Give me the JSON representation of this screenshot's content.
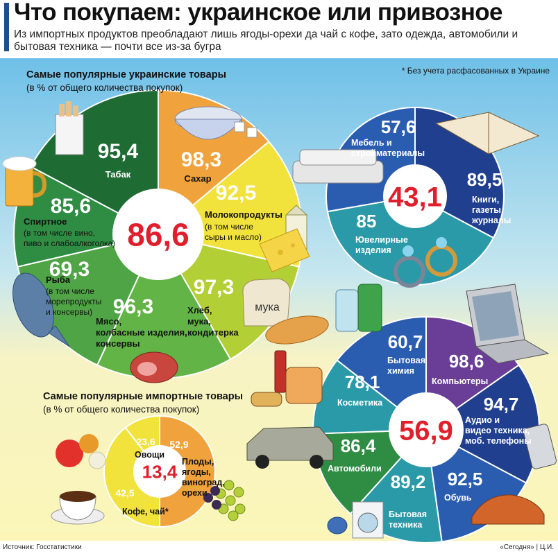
{
  "header": {
    "title": "Что покупаем: украинское или привозное",
    "subtitle": "Из импортных продуктов преобладают лишь ягоды-орехи да чай с кофе, зато одежда, автомобили и бытовая техника — почти все из-за бугра"
  },
  "footer": {
    "source": "Источник:   Госстатистики",
    "credit": "«Сегодня» | Ц.И."
  },
  "note": "* Без учета расфасованных в Украине",
  "colors": {
    "bg_top": "#7ec8ea",
    "bg_bottom": "#fbf6b8",
    "dark_green": "#1e6b34",
    "green": "#2f8c43",
    "light_green": "#63b446",
    "yellow_green": "#b2cf35",
    "yellow": "#f2e23c",
    "orange": "#f0a23c",
    "blue": "#2a5db0",
    "navy": "#20408f",
    "teal": "#2a9aa8",
    "violet": "#6a3e97",
    "red_value": "#e01f2d"
  },
  "chart_data": [
    {
      "type": "pie",
      "title": "Самые популярные украинские товары",
      "subtitle": "(в % от общего количества покупок)",
      "total_value": "86,6",
      "slices": [
        {
          "value": "95,4",
          "label": "Табак",
          "color": "#1e6b34",
          "icon": "cigarettes-icon"
        },
        {
          "value": "98,3",
          "label": "Сахар",
          "color": "#f0a23c",
          "icon": "sugar-bowl-icon"
        },
        {
          "value": "92,5",
          "label": "Молокопродукты",
          "label2": "(в том числе сыры и масло)",
          "color": "#f2e23c",
          "icon": "milk-cheese-icon"
        },
        {
          "value": "97,3",
          "label": "Хлеб, мука, кондитерка",
          "color": "#b2cf35",
          "icon": "bread-icon"
        },
        {
          "value": "96,3",
          "label": "Мясо, колбасные изделия, консервы",
          "color": "#63b446",
          "icon": "ham-icon"
        },
        {
          "value": "69,3",
          "label": "Рыба",
          "label2": "(в том числе морепродукты и консервы)",
          "color": "#4fa545",
          "icon": "fish-icon"
        },
        {
          "value": "85,6",
          "label": "Спиртное",
          "label2": "(в том числе вино, пиво и слабоалкоголка)",
          "color": "#2f8c43",
          "icon": "beer-icon"
        }
      ],
      "icon_text": "мука"
    },
    {
      "type": "pie",
      "total_value": "43,1",
      "slices": [
        {
          "value": "57,6",
          "label": "Мебель и стройматериалы",
          "color": "#2a5db0",
          "icon": "sofa-icon"
        },
        {
          "value": "89,5",
          "label": "Книги, газеты, журналы",
          "color": "#20408f",
          "icon": "book-icon"
        },
        {
          "value": "85",
          "label": "Ювелирные изделия",
          "color": "#2a9aa8",
          "icon": "rings-icon"
        }
      ]
    },
    {
      "type": "pie",
      "title": "Самые популярные импортные товары",
      "subtitle": "(в % от общего количества покупок)",
      "total_value": "13,4",
      "slices": [
        {
          "value": "23,6",
          "label": "Овощи",
          "color": "#f2e23c",
          "icon": "vegetables-icon"
        },
        {
          "value": "52,9",
          "label": "Плоды, ягоды, виноград, орехи",
          "color": "#f0a23c",
          "icon": "grapes-icon"
        },
        {
          "value": "42,5",
          "label": "Кофе, чай*",
          "color": "#f2e23c",
          "icon": "coffee-icon"
        }
      ]
    },
    {
      "type": "pie",
      "total_value": "56,9",
      "slices": [
        {
          "value": "60,7",
          "label": "Бытовая химия",
          "color": "#2a5db0",
          "icon": "detergent-icon"
        },
        {
          "value": "98,6",
          "label": "Компьютеры",
          "color": "#6a3e97",
          "icon": "laptop-icon"
        },
        {
          "value": "94,7",
          "label": "Аудио и видео техника, моб. телефоны",
          "color": "#20408f",
          "icon": "phone-icon"
        },
        {
          "value": "92,5",
          "label": "Обувь",
          "color": "#2a5db0",
          "icon": "shoes-icon"
        },
        {
          "value": "89,2",
          "label": "Бытовая техника",
          "color": "#2a9aa8",
          "icon": "washer-icon"
        },
        {
          "value": "86,4",
          "label": "Автомобили",
          "color": "#2f8c43",
          "icon": "car-icon"
        },
        {
          "value": "78,1",
          "label": "Косметика",
          "color": "#2a9aa8",
          "icon": "cosmetics-icon"
        }
      ]
    }
  ]
}
